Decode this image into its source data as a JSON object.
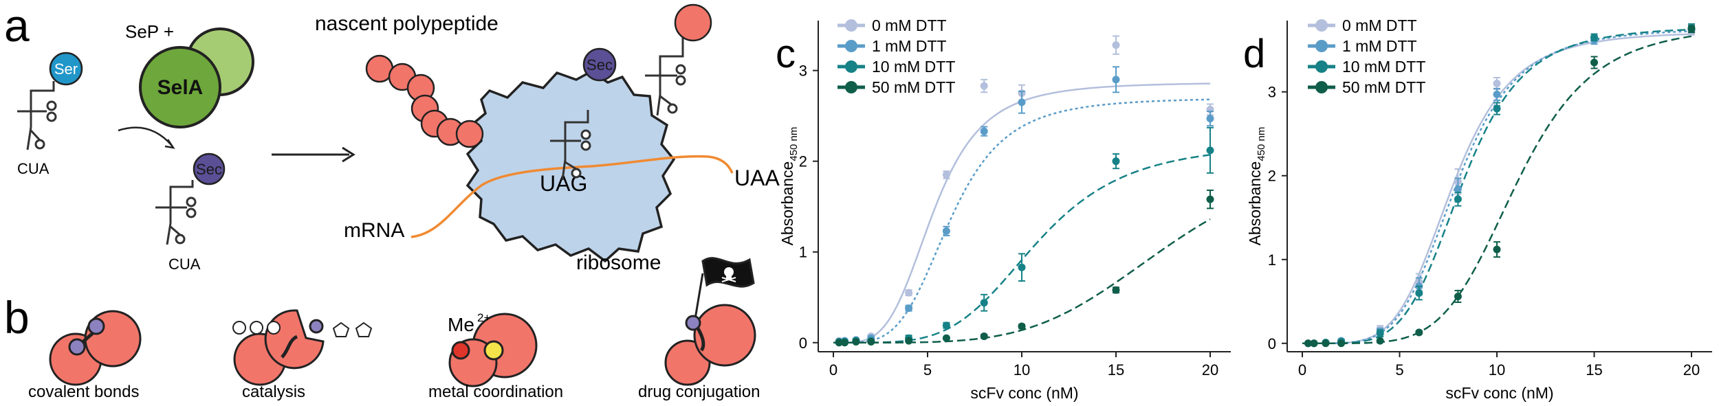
{
  "panel_labels": {
    "a": "a",
    "b": "b",
    "c": "c",
    "d": "d"
  },
  "panel_a": {
    "sep_plus": "SeP +",
    "sela": "SelA",
    "ser": "Ser",
    "sec": "Sec",
    "anticodon": "CUA",
    "nascent_polypeptide": "nascent polypeptide",
    "mrna": "mRNA",
    "uag": "UAG",
    "uaa": "UAA",
    "ribosome": "ribosome"
  },
  "panel_b": {
    "labels": [
      "covalent bonds",
      "catalysis",
      "metal coordination",
      "drug conjugation"
    ],
    "metal": "Me",
    "metal_charge": "2+"
  },
  "colors": {
    "dtt_0": "#b3bfdc",
    "dtt_1": "#5a9cc8",
    "dtt_10": "#168287",
    "dtt_50": "#0f5e4a",
    "protein": "#f2756a",
    "sec": "#5b4f96",
    "ser": "#2196c9",
    "sela": "#6ea73c",
    "ribosome": "#bdd3ea",
    "mrna": "#f08a32"
  },
  "chart_data": [
    {
      "id": "c",
      "type": "scatter",
      "xlabel": "scFv conc (nM)",
      "ylabel_main": "Absorbance",
      "ylabel_sub": "450 nm",
      "xlim": [
        0,
        20
      ],
      "ylim": [
        -0.1,
        3.55
      ],
      "xticks": [
        0,
        5,
        10,
        15,
        20
      ],
      "yticks": [
        0,
        1,
        2,
        3
      ],
      "x": [
        0.3,
        0.6,
        1.2,
        2,
        4,
        6,
        8,
        10,
        15,
        20
      ],
      "series": [
        {
          "name": "0 mM DTT",
          "values": [
            0.02,
            0.02,
            0.03,
            0.07,
            0.55,
            1.85,
            2.83,
            2.75,
            3.28,
            2.57
          ],
          "errors": [
            0.01,
            0.01,
            0.01,
            0.02,
            0.03,
            0.04,
            0.07,
            0.09,
            0.1,
            0.06
          ],
          "fit": {
            "top": 2.87,
            "ec50": 5.3,
            "hill": 4.0
          },
          "line": "solid"
        },
        {
          "name": "1 mM DTT",
          "values": [
            0.01,
            0.02,
            0.03,
            0.05,
            0.38,
            1.23,
            2.33,
            2.65,
            2.9,
            2.47
          ],
          "errors": [
            0.01,
            0.01,
            0.01,
            0.02,
            0.03,
            0.05,
            0.05,
            0.12,
            0.14,
            0.08
          ],
          "fit": {
            "top": 2.7,
            "ec50": 6.2,
            "hill": 4.2
          },
          "line": "dotted"
        },
        {
          "name": "10 mM DTT",
          "values": [
            0.01,
            0.01,
            0.02,
            0.02,
            0.05,
            0.19,
            0.44,
            0.83,
            2.0,
            2.12
          ],
          "errors": [
            0.01,
            0.01,
            0.01,
            0.01,
            0.03,
            0.03,
            0.09,
            0.15,
            0.08,
            0.25
          ],
          "fit": {
            "top": 2.2,
            "ec50": 10.8,
            "hill": 4.5
          },
          "line": "dashed"
        },
        {
          "name": "50 mM DTT",
          "values": [
            0.0,
            0.0,
            0.01,
            0.01,
            0.02,
            0.05,
            0.07,
            0.18,
            0.58,
            1.58
          ],
          "errors": [
            0.01,
            0.01,
            0.01,
            0.01,
            0.01,
            0.01,
            0.02,
            0.02,
            0.03,
            0.1
          ],
          "fit": {
            "top": 2.2,
            "ec50": 18.0,
            "hill": 4.6
          },
          "line": "dashed"
        }
      ]
    },
    {
      "id": "d",
      "type": "scatter",
      "xlabel": "scFv conc (nM)",
      "ylabel_main": "Absorbance",
      "ylabel_sub": "450 nm",
      "xlim": [
        0,
        20
      ],
      "ylim": [
        -0.1,
        3.85
      ],
      "xticks": [
        0,
        5,
        10,
        15,
        20
      ],
      "yticks": [
        0,
        1,
        2,
        3
      ],
      "x": [
        0.3,
        0.6,
        1.2,
        2,
        4,
        6,
        8,
        10,
        15,
        20
      ],
      "series": [
        {
          "name": "0 mM DTT",
          "values": [
            0.0,
            0.0,
            0.01,
            0.03,
            0.17,
            0.73,
            1.93,
            3.1,
            3.63,
            3.72
          ],
          "errors": [
            0.01,
            0.01,
            0.01,
            0.02,
            0.04,
            0.1,
            0.15,
            0.07,
            0.04,
            0.04
          ],
          "fit": {
            "top": 3.72,
            "ec50": 7.7,
            "hill": 5.0
          },
          "line": "solid"
        },
        {
          "name": "1 mM DTT",
          "values": [
            0.0,
            0.0,
            0.01,
            0.03,
            0.14,
            0.68,
            1.84,
            2.97,
            3.62,
            3.75
          ],
          "errors": [
            0.01,
            0.01,
            0.01,
            0.02,
            0.04,
            0.1,
            0.13,
            0.07,
            0.05,
            0.04
          ],
          "fit": {
            "top": 3.76,
            "ec50": 7.9,
            "hill": 5.0
          },
          "line": "dotted"
        },
        {
          "name": "10 mM DTT",
          "values": [
            0.0,
            0.0,
            0.01,
            0.02,
            0.12,
            0.6,
            1.72,
            2.8,
            3.65,
            3.76
          ],
          "errors": [
            0.01,
            0.01,
            0.01,
            0.02,
            0.04,
            0.08,
            0.08,
            0.07,
            0.04,
            0.05
          ],
          "fit": {
            "top": 3.78,
            "ec50": 8.2,
            "hill": 5.2
          },
          "line": "dashed"
        },
        {
          "name": "50 mM DTT",
          "values": [
            0.0,
            0.0,
            0.0,
            0.0,
            0.03,
            0.13,
            0.56,
            1.12,
            3.35,
            3.75
          ],
          "errors": [
            0.01,
            0.01,
            0.01,
            0.01,
            0.01,
            0.02,
            0.07,
            0.09,
            0.07,
            0.04
          ],
          "fit": {
            "top": 3.8,
            "ec50": 11.0,
            "hill": 5.5
          },
          "line": "dashed"
        }
      ]
    }
  ]
}
